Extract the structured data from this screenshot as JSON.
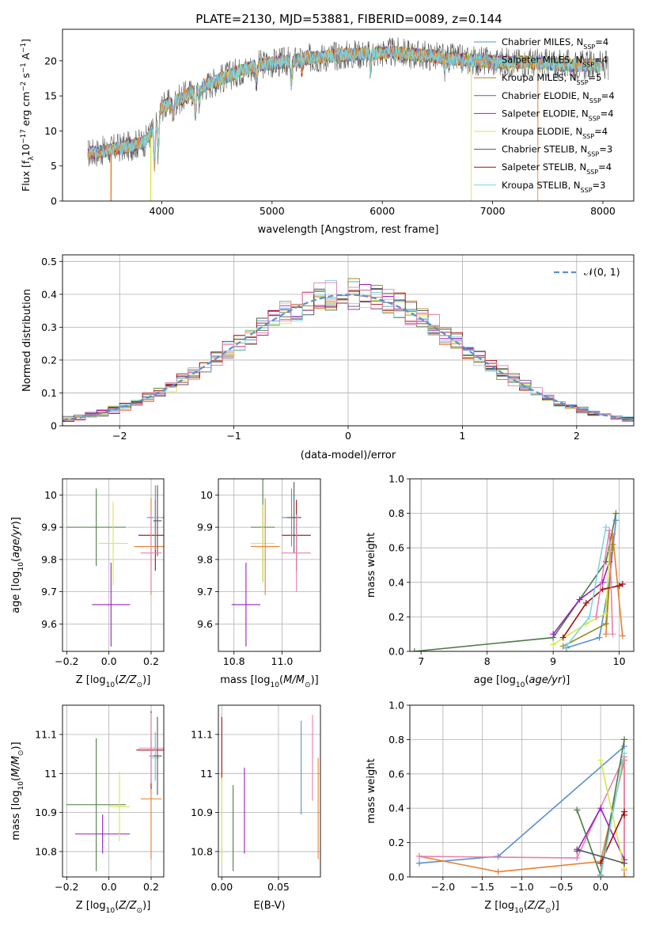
{
  "figure_title": "PLATE=2130, MJD=53881, FIBERID=0089, z=0.144",
  "colors": {
    "Chabrier MILES": "#5b8fcf",
    "Salpeter MILES": "#e87f2e",
    "Kroupa MILES": "#9a8a1f",
    "Chabrier ELODIE": "#4d7a45",
    "Salpeter ELODIE": "#9a1fbd",
    "Kroupa ELODIE": "#d6e84a",
    "Chabrier STELIB": "#555555",
    "Salpeter STELIB": "#a01010",
    "Kroupa STELIB": "#7fd4dc",
    "pink": "#e77fb0",
    "gaussian": "#5b8fcf"
  },
  "chart_data": [
    {
      "type": "line",
      "title": "PLATE=2130, MJD=53881, FIBERID=0089, z=0.144",
      "xlabel": "wavelength [Angstrom, rest frame]",
      "ylabel": "Flux [f",
      "ylabel_parts": [
        "Flux [f",
        "λ",
        "10",
        "−17",
        " erg cm",
        "−2",
        " s",
        "−1",
        " A",
        "−1",
        "]"
      ],
      "xlim": [
        3100,
        8280
      ],
      "ylim": [
        0,
        24.5
      ],
      "xticks": [
        4000,
        5000,
        6000,
        7000,
        8000
      ],
      "yticks": [
        0,
        5,
        10,
        15,
        20
      ],
      "legend_position": "top-right",
      "series": [
        {
          "name": "Chabrier MILES",
          "label_main": "Chabrier MILES, N",
          "label_sub": "SSP",
          "label_tail": "=4"
        },
        {
          "name": "Salpeter MILES",
          "label_main": "Salpeter MILES, N",
          "label_sub": "SSP",
          "label_tail": "=4"
        },
        {
          "name": "Kroupa MILES",
          "label_main": "Kroupa MILES, N",
          "label_sub": "SSP",
          "label_tail": "=5"
        },
        {
          "name": "Chabrier ELODIE",
          "label_main": "Chabrier ELODIE, N",
          "label_sub": "SSP",
          "label_tail": "=4"
        },
        {
          "name": "Salpeter ELODIE",
          "label_main": "Salpeter ELODIE, N",
          "label_sub": "SSP",
          "label_tail": "=4"
        },
        {
          "name": "Kroupa ELODIE",
          "label_main": "Kroupa ELODIE, N",
          "label_sub": "SSP",
          "label_tail": "=4"
        },
        {
          "name": "Chabrier STELIB",
          "label_main": "Chabrier STELIB, N",
          "label_sub": "SSP",
          "label_tail": "=3"
        },
        {
          "name": "Salpeter STELIB",
          "label_main": "Salpeter STELIB, N",
          "label_sub": "SSP",
          "label_tail": "=4"
        },
        {
          "name": "Kroupa STELIB",
          "label_main": "Kroupa STELIB, N",
          "label_sub": "SSP",
          "label_tail": "=3"
        }
      ],
      "continuum": {
        "x": [
          3330,
          3500,
          3600,
          3700,
          3850,
          3950,
          4000,
          4100,
          4300,
          4500,
          4700,
          4900,
          5100,
          5300,
          5500,
          5700,
          5900,
          6100,
          6300,
          6500,
          6700,
          6900,
          7100,
          7300,
          7500,
          7700,
          7900,
          8050
        ],
        "y": [
          6.8,
          7.2,
          7.6,
          7.8,
          8.5,
          11.0,
          13.5,
          14.0,
          15.8,
          17.2,
          18.5,
          19.5,
          19.8,
          20.3,
          20.6,
          20.9,
          21.1,
          21.2,
          20.9,
          20.6,
          20.2,
          20.0,
          19.8,
          19.8,
          19.6,
          19.4,
          19.4,
          19.3
        ]
      },
      "absorption_lines": [
        {
          "x": 3934,
          "depth": 5.5
        },
        {
          "x": 3969,
          "depth": 5.0
        },
        {
          "x": 4102,
          "depth": 2.0
        },
        {
          "x": 4304,
          "depth": 3.5
        },
        {
          "x": 4341,
          "depth": 2.0
        },
        {
          "x": 4861,
          "depth": 2.5
        },
        {
          "x": 5175,
          "depth": 3.5
        },
        {
          "x": 5270,
          "depth": 1.5
        },
        {
          "x": 5894,
          "depth": 2.5
        },
        {
          "x": 6563,
          "depth": 1.5
        }
      ],
      "dropouts": [
        {
          "series": "Salpeter MILES",
          "x": [
            3540,
            7410
          ]
        },
        {
          "series": "Kroupa ELODIE",
          "x": [
            3900,
            6805
          ]
        }
      ]
    },
    {
      "type": "histogram",
      "xlabel": "(data-model)/error",
      "ylabel": "Normed distribution",
      "xlim": [
        -2.5,
        2.5
      ],
      "ylim": [
        0,
        0.52
      ],
      "xticks": [
        -2,
        -1,
        0,
        1,
        2
      ],
      "yticks": [
        0.0,
        0.1,
        0.2,
        0.3,
        0.4,
        0.5
      ],
      "bin_width": 0.1,
      "gaussian_label": "𝒩(0, 1)",
      "legend_position": "top-right"
    },
    {
      "type": "errorbar",
      "xlabel": "Z [log",
      "xlabel_parts": [
        "Z [log",
        "10",
        "(",
        "Z/Z",
        "⊙",
        ")]"
      ],
      "ylabel_parts": [
        "age  [log",
        "10",
        "(",
        "age/yr",
        ")]"
      ],
      "xlim": [
        -0.22,
        0.26
      ],
      "ylim": [
        9.515,
        10.05
      ],
      "xticks": [
        -0.2,
        0.0,
        0.2
      ],
      "xtick_labels": [
        "−0.2",
        "0.0",
        "0.2"
      ],
      "yticks": [
        9.6,
        9.7,
        9.8,
        9.9,
        10.0
      ],
      "points": [
        {
          "color": "Chabrier ELODIE",
          "x": -0.06,
          "y": 9.9,
          "xerr": 0.14,
          "yerr": 0.12
        },
        {
          "color": "Salpeter ELODIE",
          "x": 0.01,
          "y": 9.66,
          "xerr": 0.09,
          "yerr": 0.13
        },
        {
          "color": "Kroupa ELODIE",
          "x": 0.02,
          "y": 9.85,
          "xerr": 0.07,
          "yerr": 0.13
        },
        {
          "color": "Salpeter MILES",
          "x": 0.2,
          "y": 9.84,
          "xerr": 0.08,
          "yerr": 0.15
        },
        {
          "color": "Salpeter STELIB",
          "x": 0.22,
          "y": 9.875,
          "xerr": 0.08,
          "yerr": 0.11
        },
        {
          "color": "Chabrier MILES",
          "x": 0.22,
          "y": 9.93,
          "xerr": 0.04,
          "yerr": 0.1
        },
        {
          "color": "Kroupa STELIB",
          "x": 0.23,
          "y": 9.93,
          "xerr": 0.02,
          "yerr": 0.09
        },
        {
          "color": "Chabrier STELIB",
          "x": 0.23,
          "y": 9.92,
          "xerr": 0.02,
          "yerr": 0.11
        },
        {
          "color": "pink",
          "x": 0.2,
          "y": 9.82,
          "xerr": 0.05,
          "yerr": 0.12
        }
      ]
    },
    {
      "type": "errorbar",
      "xlabel_parts": [
        "mass [log",
        "10",
        "(",
        "M/M",
        "⊙",
        ")]"
      ],
      "xlim": [
        10.735,
        11.16
      ],
      "ylim": [
        9.515,
        10.05
      ],
      "xticks": [
        10.8,
        11.0
      ],
      "xtick_labels": [
        "10.8",
        "11.0"
      ],
      "yticks": [
        9.6,
        9.7,
        9.8,
        9.9,
        10.0
      ],
      "points": [
        {
          "color": "Chabrier ELODIE",
          "x": 10.92,
          "y": 9.9,
          "xerr": 0.05,
          "yerr": 0.17
        },
        {
          "color": "Salpeter ELODIE",
          "x": 10.85,
          "y": 9.66,
          "xerr": 0.06,
          "yerr": 0.13
        },
        {
          "color": "Kroupa ELODIE",
          "x": 10.92,
          "y": 9.85,
          "xerr": 0.05,
          "yerr": 0.12
        },
        {
          "color": "Salpeter MILES",
          "x": 10.93,
          "y": 9.84,
          "xerr": 0.06,
          "yerr": 0.15
        },
        {
          "color": "Salpeter STELIB",
          "x": 11.06,
          "y": 9.875,
          "xerr": 0.06,
          "yerr": 0.11
        },
        {
          "color": "Chabrier MILES",
          "x": 11.04,
          "y": 9.93,
          "xerr": 0.04,
          "yerr": 0.09
        },
        {
          "color": "Chabrier STELIB",
          "x": 11.05,
          "y": 9.93,
          "xerr": 0.03,
          "yerr": 0.11
        },
        {
          "color": "pink",
          "x": 11.06,
          "y": 9.82,
          "xerr": 0.06,
          "yerr": 0.12
        }
      ]
    },
    {
      "type": "line",
      "xlabel_parts": [
        "age  [log",
        "10",
        "(",
        "age/yr",
        ")]"
      ],
      "ylabel": "mass weight",
      "xlim": [
        6.83,
        10.22
      ],
      "ylim": [
        0,
        1.0
      ],
      "xticks": [
        7,
        8,
        9,
        10
      ],
      "yticks": [
        0.0,
        0.2,
        0.4,
        0.6,
        0.8,
        1.0
      ],
      "ytick_labels": [
        "0.0",
        "0.2",
        "0.4",
        "0.6",
        "0.8",
        "1.0"
      ],
      "series": [
        {
          "color": "Chabrier ELODIE",
          "x": [
            6.9,
            9.0,
            9.8,
            9.95
          ],
          "y": [
            0.0,
            0.08,
            0.52,
            0.8
          ]
        },
        {
          "color": "Chabrier MILES",
          "x": [
            9.2,
            9.7,
            9.85,
            9.95
          ],
          "y": [
            0.02,
            0.08,
            0.4,
            0.76
          ]
        },
        {
          "color": "Salpeter MILES",
          "x": [
            9.8,
            9.9,
            10.05
          ],
          "y": [
            0.1,
            0.68,
            0.09
          ]
        },
        {
          "color": "Kroupa MILES",
          "x": [
            9.15,
            9.8,
            9.9
          ],
          "y": [
            0.03,
            0.16,
            0.62
          ]
        },
        {
          "color": "Salpeter ELODIE",
          "x": [
            9.0,
            9.4,
            9.75,
            9.85
          ],
          "y": [
            0.1,
            0.3,
            0.4,
            0.52
          ]
        },
        {
          "color": "Kroupa ELODIE",
          "x": [
            9.0,
            9.5,
            9.8,
            9.85
          ],
          "y": [
            0.04,
            0.16,
            0.22,
            0.58
          ]
        },
        {
          "color": "Salpeter STELIB",
          "x": [
            9.15,
            9.5,
            9.75,
            10.0,
            10.05
          ],
          "y": [
            0.08,
            0.28,
            0.36,
            0.38,
            0.39
          ]
        },
        {
          "color": "Kroupa STELIB",
          "x": [
            9.2,
            9.55,
            9.8
          ],
          "y": [
            0.03,
            0.2,
            0.72
          ]
        },
        {
          "color": "pink",
          "x": [
            9.65,
            9.85,
            9.9
          ],
          "y": [
            0.2,
            0.7,
            0.1
          ]
        }
      ]
    },
    {
      "type": "errorbar",
      "xlabel_parts": [
        "Z [log",
        "10",
        "(",
        "Z/Z",
        "⊙",
        ")]"
      ],
      "ylabel_parts": [
        "mass [log",
        "10",
        "(",
        "M/M",
        "⊙",
        ")]"
      ],
      "xlim": [
        -0.22,
        0.26
      ],
      "ylim": [
        10.735,
        11.175
      ],
      "xticks": [
        -0.2,
        0.0,
        0.2
      ],
      "xtick_labels": [
        "−0.2",
        "0.0",
        "0.2"
      ],
      "yticks": [
        10.8,
        10.9,
        11.0,
        11.1
      ],
      "points": [
        {
          "color": "Chabrier ELODIE",
          "x": -0.06,
          "y": 10.92,
          "xerr": 0.14,
          "yerr": 0.17
        },
        {
          "color": "Salpeter ELODIE",
          "x": -0.03,
          "y": 10.845,
          "xerr": 0.13,
          "yerr": 0.05
        },
        {
          "color": "Kroupa ELODIE",
          "x": 0.05,
          "y": 10.915,
          "xerr": 0.05,
          "yerr": 0.09
        },
        {
          "color": "Salpeter MILES",
          "x": 0.2,
          "y": 10.935,
          "xerr": 0.05,
          "yerr": 0.155
        },
        {
          "color": "Salpeter STELIB",
          "x": 0.2,
          "y": 11.06,
          "xerr": 0.07,
          "yerr": 0.1
        },
        {
          "color": "Chabrier MILES",
          "x": 0.22,
          "y": 11.045,
          "xerr": 0.03,
          "yerr": 0.06
        },
        {
          "color": "Kroupa STELIB",
          "x": 0.22,
          "y": 11.04,
          "xerr": 0.02,
          "yerr": 0.06
        },
        {
          "color": "Chabrier STELIB",
          "x": 0.23,
          "y": 11.045,
          "xerr": 0.02,
          "yerr": 0.1
        },
        {
          "color": "pink",
          "x": 0.2,
          "y": 11.065,
          "xerr": 0.06,
          "yerr": 0.09
        }
      ]
    },
    {
      "type": "errorbar",
      "xlabel": "E(B-V)",
      "xlim": [
        -0.003,
        0.087
      ],
      "ylim": [
        10.735,
        11.175
      ],
      "xticks": [
        0.0,
        0.05
      ],
      "xtick_labels": [
        "0.00",
        "0.05"
      ],
      "yticks": [
        10.8,
        10.9,
        11.0,
        11.1
      ],
      "points": [
        {
          "color": "Salpeter STELIB",
          "x": 0.0,
          "y": 11.065,
          "xerr": 0,
          "yerr": 0.08
        },
        {
          "color": "Kroupa ELODIE",
          "x": 0.0,
          "y": 10.88,
          "xerr": 0,
          "yerr": 0.11
        },
        {
          "color": "Chabrier ELODIE",
          "x": 0.01,
          "y": 10.86,
          "xerr": 0,
          "yerr": 0.11
        },
        {
          "color": "Salpeter ELODIE",
          "x": 0.02,
          "y": 10.905,
          "xerr": 0,
          "yerr": 0.11
        },
        {
          "color": "Chabrier MILES",
          "x": 0.07,
          "y": 11.015,
          "xerr": 0,
          "yerr": 0.12
        },
        {
          "color": "pink",
          "x": 0.08,
          "y": 11.04,
          "xerr": 0,
          "yerr": 0.11
        },
        {
          "color": "Salpeter MILES",
          "x": 0.085,
          "y": 10.91,
          "xerr": 0,
          "yerr": 0.13
        }
      ]
    },
    {
      "type": "line",
      "xlabel_parts": [
        "Z [log",
        "10",
        "(",
        "Z/Z",
        "⊙",
        ")]"
      ],
      "ylabel": "mass weight",
      "xlim": [
        -2.42,
        0.42
      ],
      "ylim": [
        0,
        1.0
      ],
      "xticks": [
        -2.0,
        -1.5,
        -1.0,
        -0.5,
        0.0
      ],
      "xtick_labels": [
        "−2.0",
        "−1.5",
        "−1.0",
        "−0.5",
        "0.0"
      ],
      "yticks": [
        0.0,
        0.2,
        0.4,
        0.6,
        0.8,
        1.0
      ],
      "ytick_labels": [
        "0.0",
        "0.2",
        "0.4",
        "0.6",
        "0.8",
        "1.0"
      ],
      "series": [
        {
          "color": "Chabrier MILES",
          "x": [
            -2.3,
            -1.3,
            0.3
          ],
          "y": [
            0.08,
            0.12,
            0.76
          ]
        },
        {
          "color": "Salpeter MILES",
          "x": [
            -2.3,
            -1.3,
            0.0,
            0.3,
            0.3
          ],
          "y": [
            0.12,
            0.03,
            0.09,
            0.68,
            0.0
          ]
        },
        {
          "color": "pink",
          "x": [
            -2.3,
            -0.3,
            0.3,
            0.3
          ],
          "y": [
            0.12,
            0.11,
            0.7,
            0.04
          ]
        },
        {
          "color": "Chabrier ELODIE",
          "x": [
            -0.3,
            0.0,
            0.3
          ],
          "y": [
            0.39,
            0.01,
            0.8
          ]
        },
        {
          "color": "Salpeter ELODIE",
          "x": [
            -0.3,
            0.0,
            0.3
          ],
          "y": [
            0.15,
            0.4,
            0.1
          ]
        },
        {
          "color": "Kroupa ELODIE",
          "x": [
            0.0,
            0.3
          ],
          "y": [
            0.68,
            0.05
          ]
        },
        {
          "color": "Salpeter STELIB",
          "x": [
            0.0,
            0.3,
            0.3
          ],
          "y": [
            0.08,
            0.38,
            0.36
          ]
        },
        {
          "color": "Kroupa STELIB",
          "x": [
            0.0,
            0.3
          ],
          "y": [
            0.0,
            0.72
          ]
        },
        {
          "color": "Chabrier STELIB",
          "x": [
            -0.3,
            0.3
          ],
          "y": [
            0.16,
            0.08
          ]
        }
      ]
    }
  ]
}
